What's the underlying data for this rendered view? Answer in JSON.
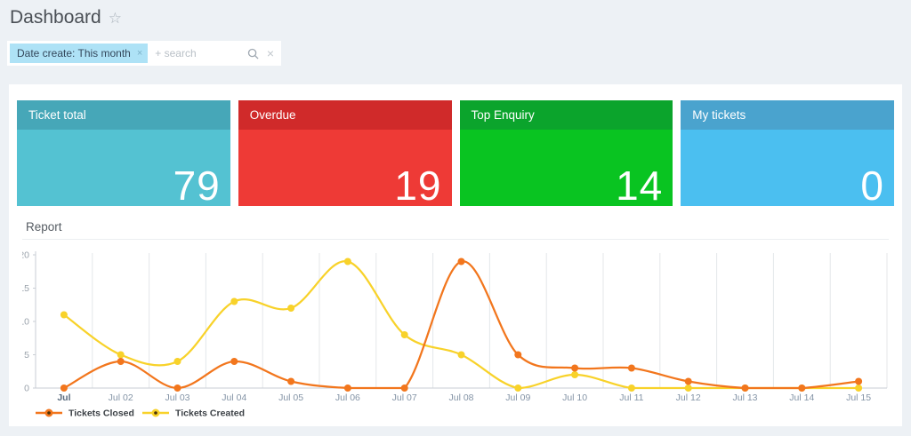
{
  "page": {
    "title": "Dashboard",
    "star_icon": "☆"
  },
  "filter_bar": {
    "chip": {
      "label": "Date create: This month",
      "close_icon": "×"
    },
    "search_placeholder": "+ search",
    "search_icon": "magnifier",
    "clear_icon": "×"
  },
  "cards": [
    {
      "title": "Ticket total",
      "value": "79",
      "header_color": "#46a7b8",
      "body_color": "#54c2d2"
    },
    {
      "title": "Overdue",
      "value": "19",
      "header_color": "#d02a2a",
      "body_color": "#ee3a36"
    },
    {
      "title": "Top Enquiry",
      "value": "14",
      "header_color": "#0ba42c",
      "body_color": "#09c421"
    },
    {
      "title": "My tickets",
      "value": "0",
      "header_color": "#4aa3ce",
      "body_color": "#4bbff0"
    }
  ],
  "report": {
    "heading": "Report"
  },
  "chart_data": {
    "type": "line",
    "title": "Report",
    "categories": [
      "Jul",
      "Jul 02",
      "Jul 03",
      "Jul 04",
      "Jul 05",
      "Jul 06",
      "Jul 07",
      "Jul 08",
      "Jul 09",
      "Jul 10",
      "Jul 11",
      "Jul 12",
      "Jul 13",
      "Jul 14",
      "Jul 15"
    ],
    "series": [
      {
        "name": "Tickets Closed",
        "color": "#f2761d",
        "values": [
          0,
          4,
          0,
          4,
          1,
          0,
          0,
          19,
          5,
          3,
          3,
          1,
          0,
          0,
          1
        ]
      },
      {
        "name": "Tickets Created",
        "color": "#f8d22a",
        "values": [
          11,
          5,
          4,
          13,
          12,
          19,
          8,
          5,
          0,
          2,
          0,
          0,
          0,
          0,
          0
        ]
      }
    ],
    "xlabel": "",
    "ylabel": "",
    "ylim": [
      0,
      20
    ],
    "yticks": [
      0,
      5,
      10,
      15,
      20
    ],
    "grid": "vertical-category-boundaries",
    "smoothed": true,
    "legend_position": "bottom-left"
  }
}
